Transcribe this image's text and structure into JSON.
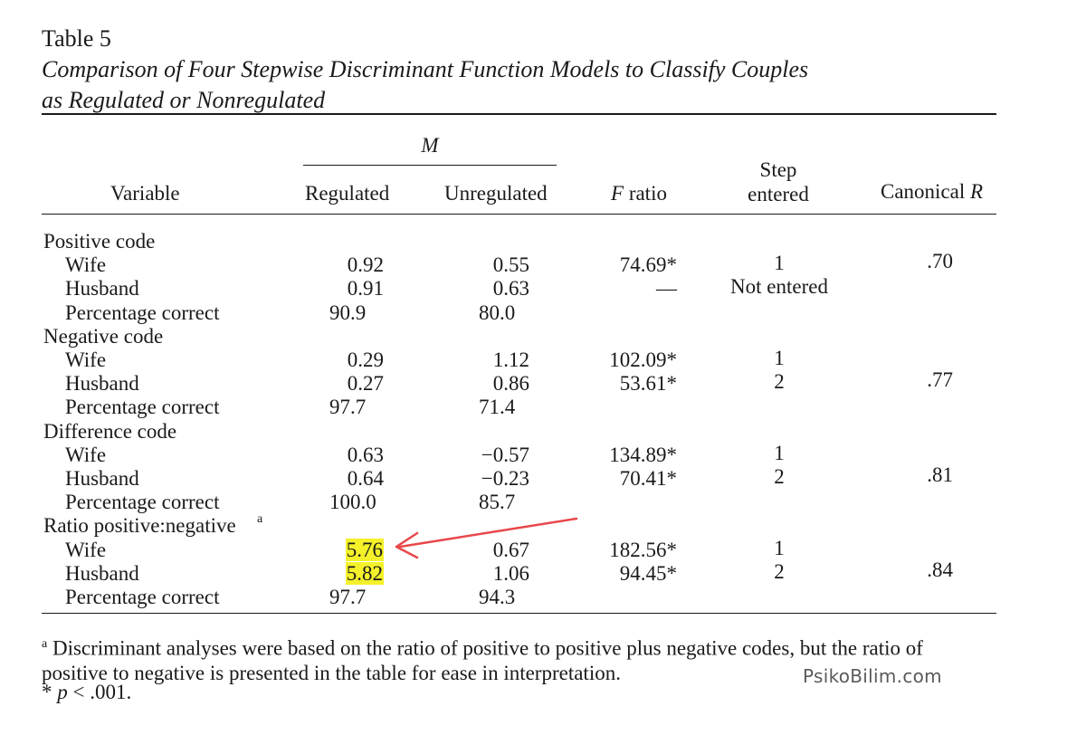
{
  "table": {
    "number": "Table 5",
    "caption_line1": "Comparison of Four Stepwise Discriminant Function Models to Classify Couples",
    "caption_line2": "as Regulated or Nonregulated",
    "header": {
      "group": "M",
      "variable": "Variable",
      "regulated": "Regulated",
      "unregulated": "Unregulated",
      "f_italic": "F",
      "f_rest": " ratio",
      "step_line1": "Step",
      "step_line2": "entered",
      "canon_rest": "Canonical ",
      "canon_italic": "R"
    },
    "groups": [
      {
        "label": "Positive code",
        "rows": [
          {
            "label": "Wife",
            "regulated": "0.92",
            "unregulated": "0.55",
            "f": "74.69*",
            "step": "1",
            "canon": ".70"
          },
          {
            "label": "Husband",
            "regulated": "0.91",
            "unregulated": "0.63",
            "f": "—",
            "step": "Not entered",
            "canon": ""
          },
          {
            "label": "Percentage correct",
            "regulated": "90.9",
            "unregulated": "80.0",
            "f": "",
            "step": "",
            "canon": ""
          }
        ]
      },
      {
        "label": "Negative code",
        "rows": [
          {
            "label": "Wife",
            "regulated": "0.29",
            "unregulated": "1.12",
            "f": "102.09*",
            "step": "1",
            "canon": ""
          },
          {
            "label": "Husband",
            "regulated": "0.27",
            "unregulated": "0.86",
            "f": "53.61*",
            "step": "2",
            "canon": ".77"
          },
          {
            "label": "Percentage correct",
            "regulated": "97.7",
            "unregulated": "71.4",
            "f": "",
            "step": "",
            "canon": ""
          }
        ]
      },
      {
        "label": "Difference code",
        "rows": [
          {
            "label": "Wife",
            "regulated": "0.63",
            "unregulated": "−0.57",
            "f": "134.89*",
            "step": "1",
            "canon": ""
          },
          {
            "label": "Husband",
            "regulated": "0.64",
            "unregulated": "−0.23",
            "f": "70.41*",
            "step": "2",
            "canon": ".81"
          },
          {
            "label": "Percentage correct",
            "regulated": "100.0",
            "unregulated": "85.7",
            "f": "",
            "step": "",
            "canon": ""
          }
        ]
      },
      {
        "label": "Ratio positive:negative",
        "label_sup": "a",
        "rows": [
          {
            "label": "Wife",
            "regulated": "5.76",
            "unregulated": "0.67",
            "f": "182.56*",
            "step": "1",
            "canon": ""
          },
          {
            "label": "Husband",
            "regulated": "5.82",
            "unregulated": "1.06",
            "f": "94.45*",
            "step": "2",
            "canon": ".84"
          },
          {
            "label": "Percentage correct",
            "regulated": "97.7",
            "unregulated": "94.3",
            "f": "",
            "step": "",
            "canon": ""
          }
        ]
      }
    ],
    "footnote_a_mark": "a",
    "footnote_a_line1": " Discriminant analyses were based on the ratio of positive to positive plus negative codes, but the ratio of",
    "footnote_a_line2": "positive to negative is presented in the table for ease in interpretation.",
    "footnote_p_mark": "*",
    "footnote_p_italic": "p",
    "footnote_p_rest": " < .001."
  },
  "annotation": {
    "highlight_color": "#f4f12a",
    "arrow_color": "#e8474a"
  },
  "watermark": "PsikoBilim.com"
}
